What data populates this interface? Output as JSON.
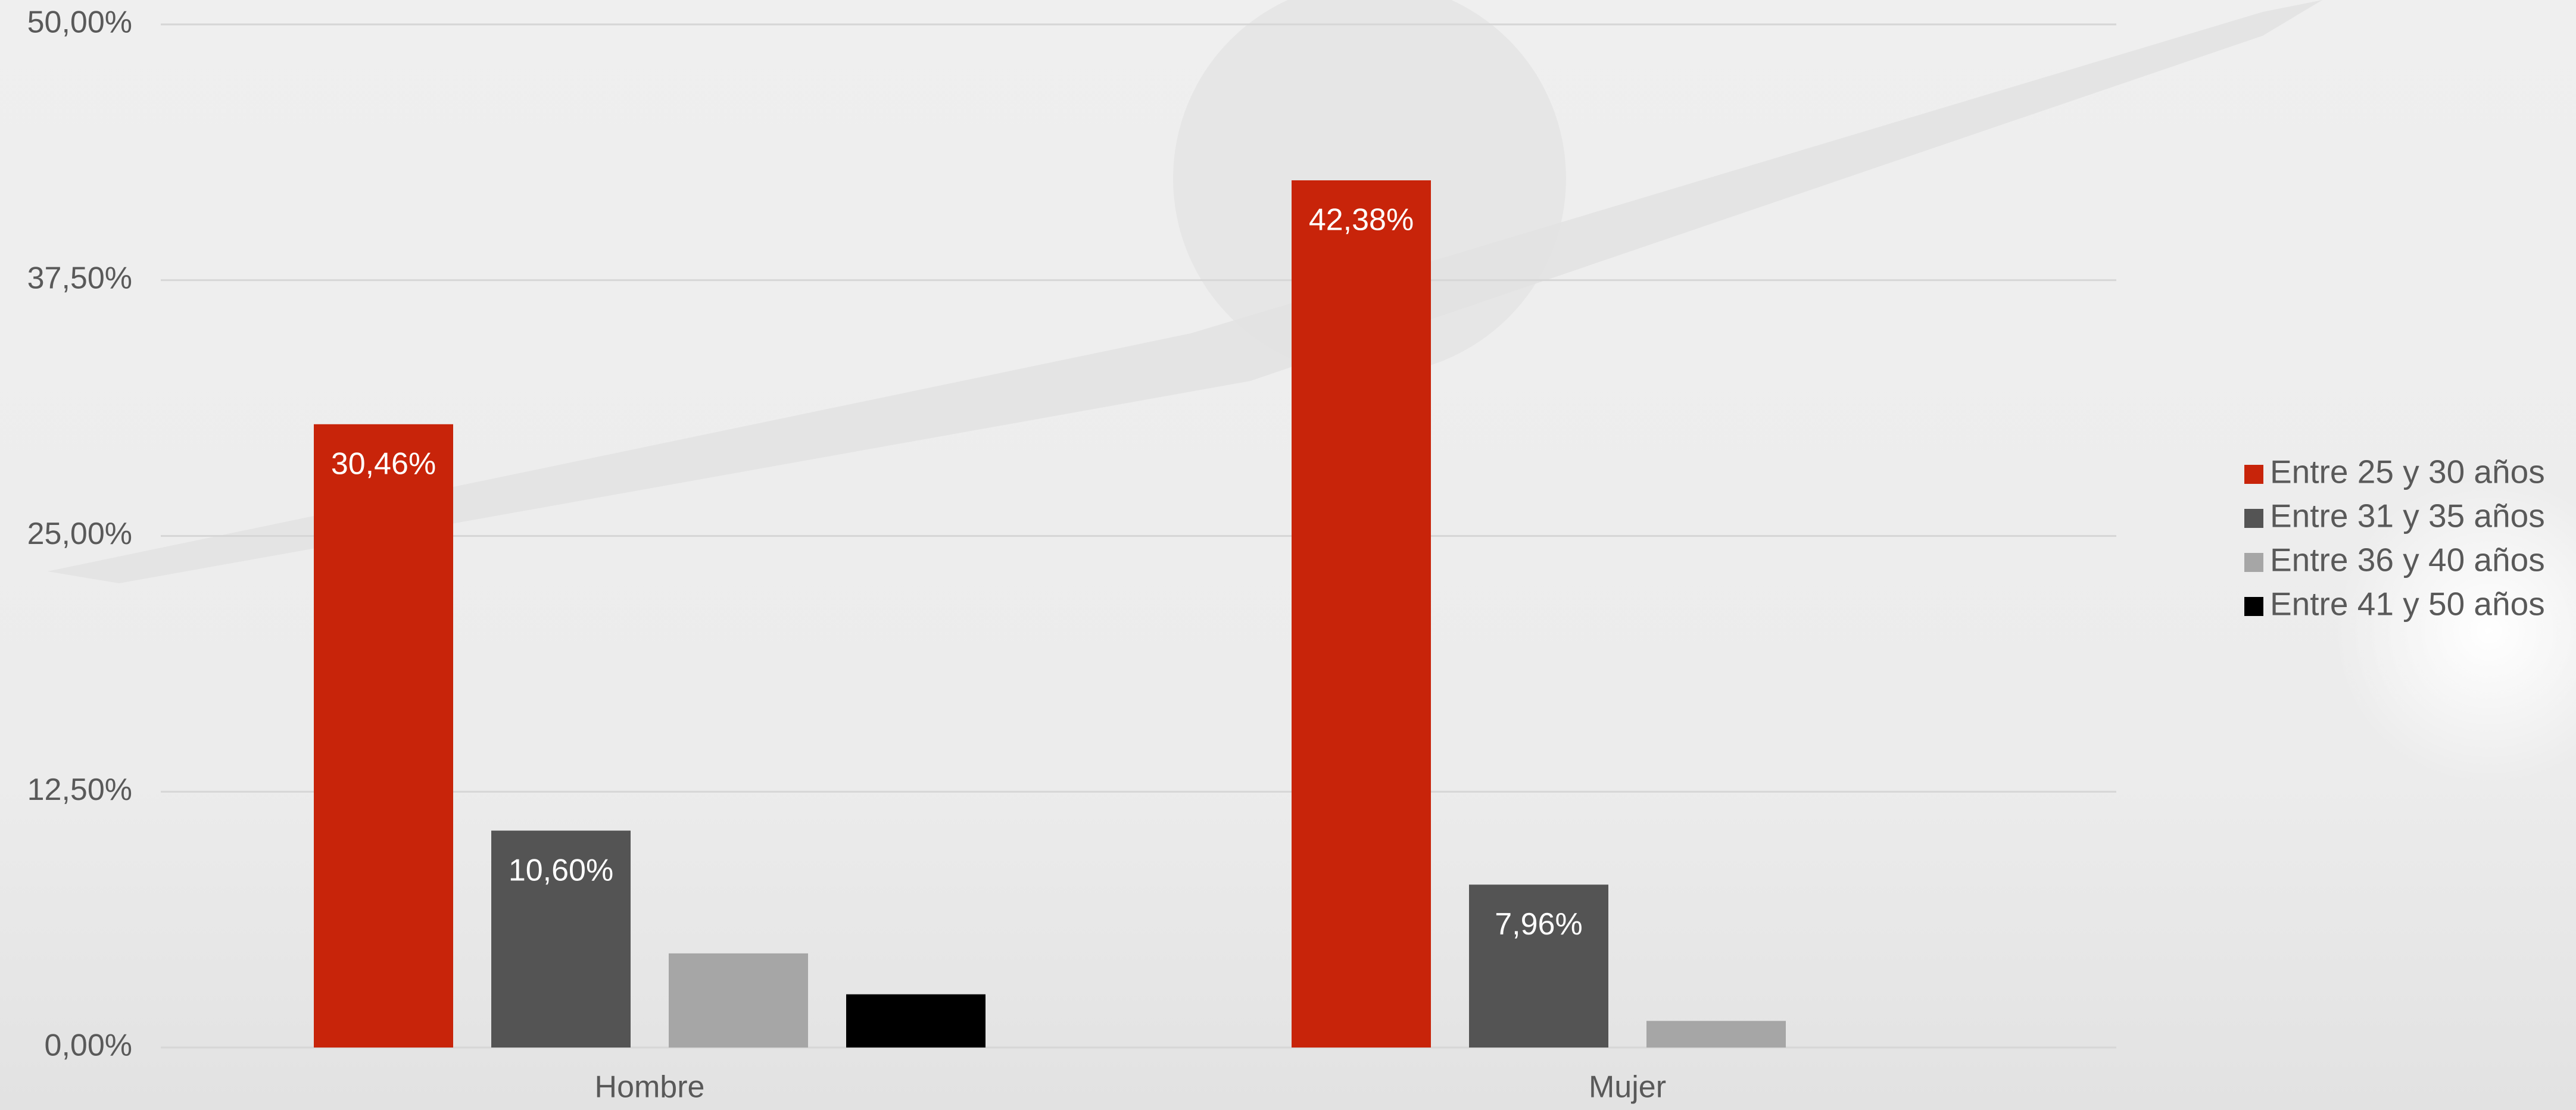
{
  "chart_data": {
    "type": "bar",
    "categories": [
      "Hombre",
      "Mujer"
    ],
    "series": [
      {
        "name": "Entre 25 y 30 años",
        "color": "#c8240a",
        "values": [
          30.46,
          42.38
        ],
        "value_labels": [
          "30,46%",
          "42,38%"
        ]
      },
      {
        "name": "Entre 31 y 35 años",
        "color": "#545454",
        "values": [
          10.6,
          7.96
        ],
        "value_labels": [
          "10,60%",
          "7,96%"
        ]
      },
      {
        "name": "Entre 36 y 40 años",
        "color": "#a6a6a6",
        "values": [
          4.6,
          1.3
        ]
      },
      {
        "name": "Entre 41 y 50 años",
        "color": "#000000",
        "values": [
          2.6,
          0
        ]
      }
    ],
    "ylim": [
      0,
      50
    ],
    "yticks": [
      {
        "value": 0,
        "label": "0,00%"
      },
      {
        "value": 12.5,
        "label": "12,50%"
      },
      {
        "value": 25,
        "label": "25,00%"
      },
      {
        "value": 37.5,
        "label": "37,50%"
      },
      {
        "value": 50,
        "label": "50,00%"
      }
    ],
    "grid": true,
    "legend": "right"
  }
}
